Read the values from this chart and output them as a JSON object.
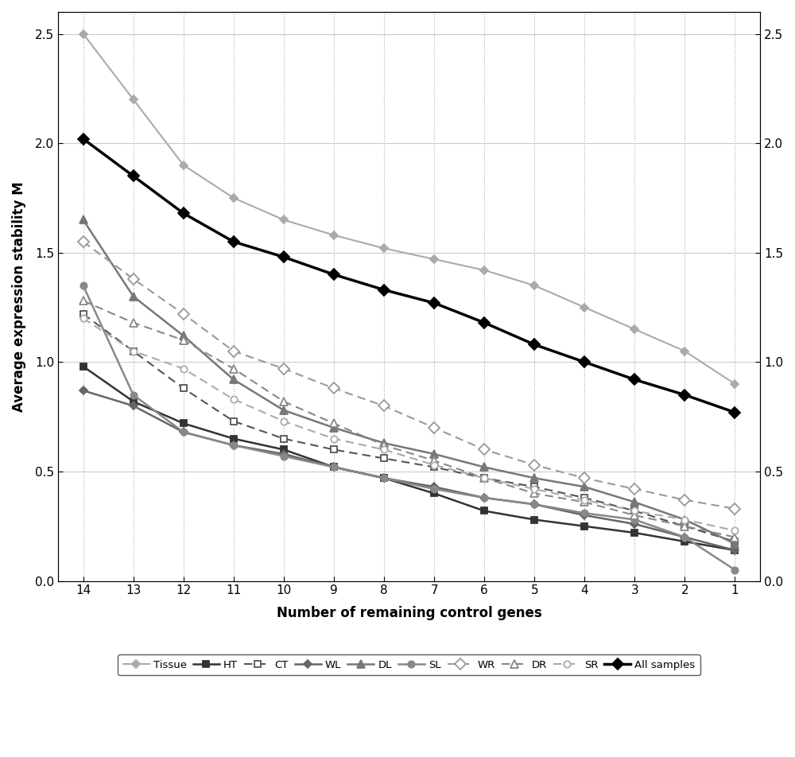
{
  "x": [
    14,
    13,
    12,
    11,
    10,
    9,
    8,
    7,
    6,
    5,
    4,
    3,
    2,
    1
  ],
  "series": {
    "Tissue": {
      "y": [
        2.5,
        2.2,
        1.9,
        1.75,
        1.65,
        1.58,
        1.52,
        1.47,
        1.42,
        1.35,
        1.25,
        1.15,
        1.05,
        0.9
      ],
      "color": "#aaaaaa",
      "linestyle": "-",
      "marker": "D",
      "mfc": "#aaaaaa",
      "mec": "#aaaaaa",
      "linewidth": 1.5,
      "markersize": 5,
      "dashes": null
    },
    "HT": {
      "y": [
        0.98,
        0.82,
        0.72,
        0.65,
        0.6,
        0.52,
        0.47,
        0.4,
        0.32,
        0.28,
        0.25,
        0.22,
        0.18,
        0.14
      ],
      "color": "#333333",
      "linestyle": "-",
      "marker": "s",
      "mfc": "#333333",
      "mec": "#333333",
      "linewidth": 1.8,
      "markersize": 6,
      "dashes": null
    },
    "CT": {
      "y": [
        1.22,
        1.05,
        0.88,
        0.73,
        0.65,
        0.6,
        0.56,
        0.52,
        0.47,
        0.43,
        0.38,
        0.32,
        0.25,
        0.18
      ],
      "color": "#555555",
      "linestyle": "--",
      "marker": "s",
      "mfc": "white",
      "mec": "#555555",
      "linewidth": 1.5,
      "markersize": 6,
      "dashes": [
        5,
        3
      ]
    },
    "WL": {
      "y": [
        0.87,
        0.8,
        0.68,
        0.62,
        0.58,
        0.52,
        0.47,
        0.43,
        0.38,
        0.35,
        0.3,
        0.26,
        0.2,
        0.14
      ],
      "color": "#666666",
      "linestyle": "-",
      "marker": "D",
      "mfc": "#666666",
      "mec": "#666666",
      "linewidth": 1.8,
      "markersize": 5,
      "dashes": null
    },
    "DL": {
      "y": [
        1.65,
        1.3,
        1.12,
        0.92,
        0.78,
        0.7,
        0.63,
        0.58,
        0.52,
        0.47,
        0.43,
        0.36,
        0.28,
        0.17
      ],
      "color": "#777777",
      "linestyle": "-",
      "marker": "^",
      "mfc": "#777777",
      "mec": "#777777",
      "linewidth": 1.8,
      "markersize": 7,
      "dashes": null
    },
    "SL": {
      "y": [
        1.35,
        0.85,
        0.68,
        0.62,
        0.57,
        0.52,
        0.47,
        0.42,
        0.38,
        0.35,
        0.31,
        0.28,
        0.2,
        0.05
      ],
      "color": "#888888",
      "linestyle": "-",
      "marker": "o",
      "mfc": "#888888",
      "mec": "#888888",
      "linewidth": 1.8,
      "markersize": 6,
      "dashes": null
    },
    "WR": {
      "y": [
        1.55,
        1.38,
        1.22,
        1.05,
        0.97,
        0.88,
        0.8,
        0.7,
        0.6,
        0.53,
        0.47,
        0.42,
        0.37,
        0.33
      ],
      "color": "#999999",
      "linestyle": "--",
      "marker": "D",
      "mfc": "white",
      "mec": "#999999",
      "linewidth": 1.5,
      "markersize": 7,
      "dashes": [
        5,
        3
      ]
    },
    "DR": {
      "y": [
        1.28,
        1.18,
        1.1,
        0.97,
        0.82,
        0.72,
        0.62,
        0.55,
        0.47,
        0.4,
        0.36,
        0.3,
        0.25,
        0.2
      ],
      "color": "#888888",
      "linestyle": "--",
      "marker": "^",
      "mfc": "white",
      "mec": "#888888",
      "linewidth": 1.5,
      "markersize": 7,
      "dashes": [
        5,
        3
      ]
    },
    "SR": {
      "y": [
        1.2,
        1.05,
        0.97,
        0.83,
        0.73,
        0.65,
        0.6,
        0.53,
        0.47,
        0.42,
        0.37,
        0.32,
        0.28,
        0.23
      ],
      "color": "#aaaaaa",
      "linestyle": "--",
      "marker": "o",
      "mfc": "white",
      "mec": "#aaaaaa",
      "linewidth": 1.5,
      "markersize": 6,
      "dashes": [
        5,
        3
      ]
    },
    "All samples": {
      "y": [
        2.02,
        1.85,
        1.68,
        1.55,
        1.48,
        1.4,
        1.33,
        1.27,
        1.18,
        1.08,
        1.0,
        0.92,
        0.85,
        0.77
      ],
      "color": "#000000",
      "linestyle": "-",
      "marker": "D",
      "mfc": "#000000",
      "mec": "#000000",
      "linewidth": 2.5,
      "markersize": 7,
      "dashes": null
    }
  },
  "xlabel": "Number of remaining control genes",
  "ylabel": "Average expression stability M",
  "ylim": [
    0.0,
    2.6
  ],
  "yticks": [
    0.0,
    0.5,
    1.0,
    1.5,
    2.0,
    2.5
  ],
  "background_color": "#ffffff",
  "grid_color_h": "#cccccc",
  "grid_color_v": "#aaaaaa"
}
